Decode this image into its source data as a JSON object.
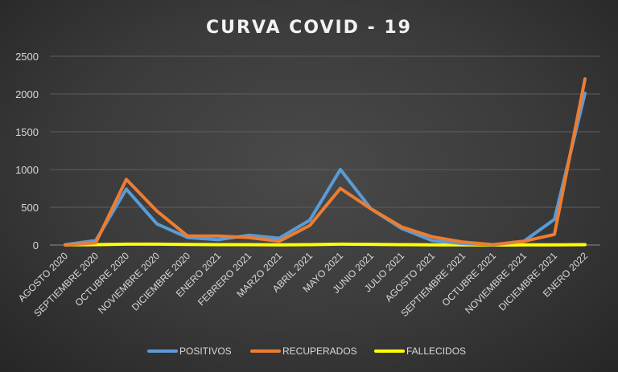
{
  "chart_data": {
    "type": "line",
    "title": "CURVA COVID - 19",
    "xlabel": "",
    "ylabel": "",
    "ylim": [
      0,
      2500
    ],
    "yticks": [
      0,
      500,
      1000,
      1500,
      2000,
      2500
    ],
    "grid": true,
    "legend_position": "bottom",
    "categories": [
      "AGOSTO 2020",
      "SEPTIEMBRE 2020",
      "OCTUBRE 2020",
      "NOVIEMBRE 2020",
      "DICIEMBRE 2020",
      "ENERO 2021",
      "FEBRERO 2021",
      "MARZO 2021",
      "ABRIL 2021",
      "MAYO 2021",
      "JUNIO 2021",
      "JULIO 2021",
      "AGOSTO 2021",
      "SEPTIEMBRE 2021",
      "OCTUBRE 2021",
      "NOVIEMBRE 2021",
      "DICIEMBRE 2021",
      "ENERO 2022"
    ],
    "series": [
      {
        "name": "POSITIVOS",
        "color": "#5b9bd5",
        "values": [
          5,
          60,
          740,
          280,
          100,
          70,
          130,
          90,
          330,
          1000,
          480,
          220,
          60,
          20,
          5,
          50,
          340,
          2010
        ]
      },
      {
        "name": "RECUPERADOS",
        "color": "#ed7d31",
        "values": [
          0,
          30,
          870,
          450,
          120,
          120,
          100,
          50,
          260,
          750,
          480,
          240,
          110,
          40,
          5,
          50,
          140,
          2200
        ]
      },
      {
        "name": "FALLECIDOS",
        "color": "#ffff00",
        "values": [
          3,
          5,
          12,
          12,
          8,
          5,
          5,
          3,
          5,
          12,
          10,
          5,
          3,
          2,
          1,
          2,
          3,
          5
        ]
      }
    ]
  }
}
